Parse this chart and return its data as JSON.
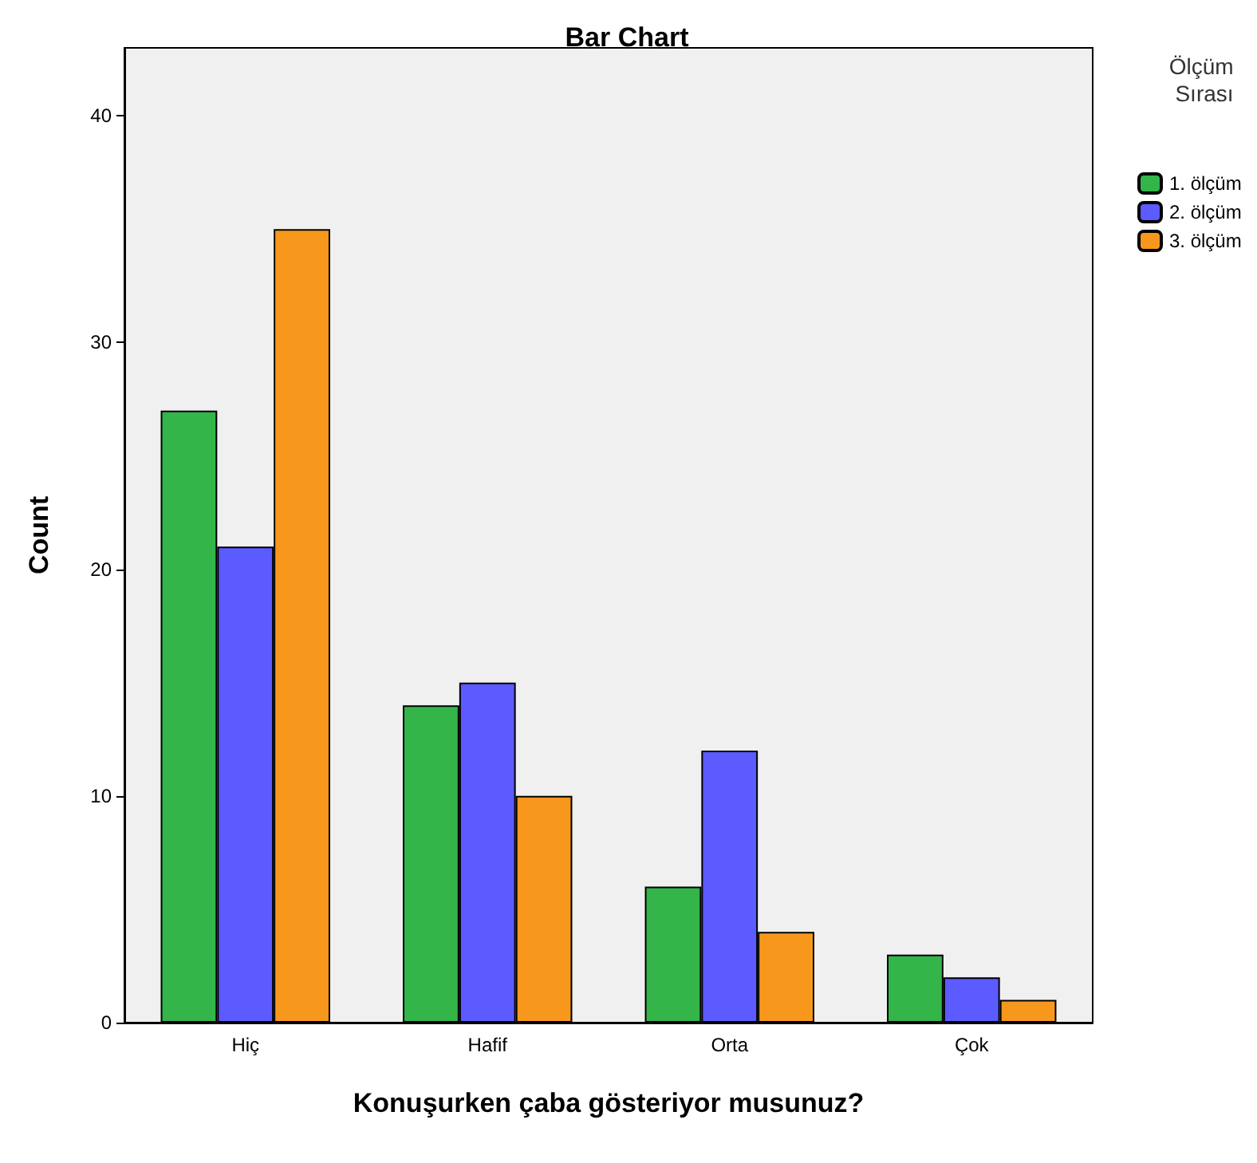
{
  "chart_data": {
    "type": "bar",
    "title": "Bar Chart",
    "xlabel": "Konuşurken çaba gösteriyor musunuz?",
    "ylabel": "Count",
    "legend_title": "Ölçüm Sırası",
    "categories": [
      "Hiç",
      "Hafif",
      "Orta",
      "Çok"
    ],
    "series": [
      {
        "name": "1. ölçüm",
        "color": "#33b54a",
        "values": [
          27,
          14,
          6,
          3
        ]
      },
      {
        "name": "2. ölçüm",
        "color": "#5b5bff",
        "values": [
          21,
          15,
          12,
          2
        ]
      },
      {
        "name": "3. ölçüm",
        "color": "#f7981d",
        "values": [
          35,
          10,
          4,
          1
        ]
      }
    ],
    "ylim": [
      0,
      43
    ],
    "yticks": [
      0,
      10,
      20,
      30,
      40
    ],
    "grid": false,
    "legend": "right"
  }
}
